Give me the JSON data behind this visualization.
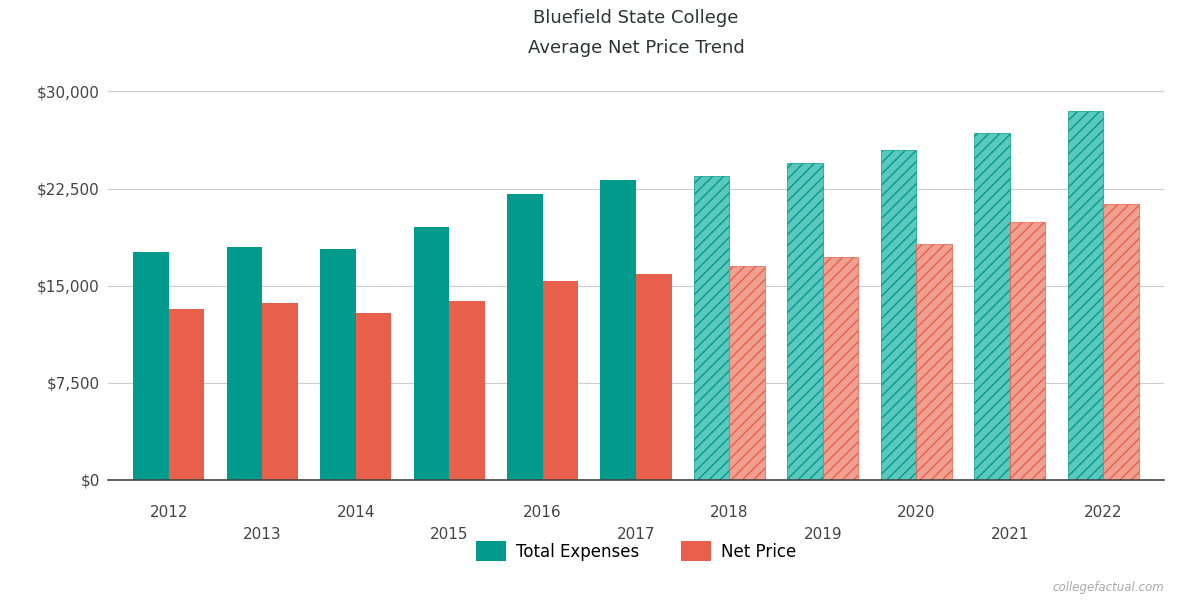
{
  "title_line1": "Bluefield State College",
  "title_line2": "Average Net Price Trend",
  "years": [
    2012,
    2013,
    2014,
    2015,
    2016,
    2017,
    2018,
    2019,
    2020,
    2021,
    2022
  ],
  "total_expenses": [
    17600,
    18000,
    17800,
    19500,
    22100,
    23200,
    23500,
    24500,
    25500,
    26800,
    28500
  ],
  "net_price": [
    13200,
    13700,
    12900,
    13800,
    15400,
    15900,
    16500,
    17200,
    18200,
    19900,
    21300
  ],
  "solid_years": [
    2012,
    2013,
    2014,
    2015,
    2016,
    2017
  ],
  "hatched_years": [
    2018,
    2019,
    2020,
    2021,
    2022
  ],
  "teal_solid": "#009B8D",
  "teal_hatch": "#5BC8BE",
  "salmon_solid": "#E8604C",
  "salmon_hatch": "#F0A090",
  "bg_color": "#FFFFFF",
  "grid_color": "#CCCCCC",
  "title_color": "#2d3436",
  "tick_color": "#444444",
  "ylim": [
    0,
    31500
  ],
  "yticks": [
    0,
    7500,
    15000,
    22500,
    30000
  ],
  "bar_width": 0.38,
  "watermark": "collegefactual.com"
}
